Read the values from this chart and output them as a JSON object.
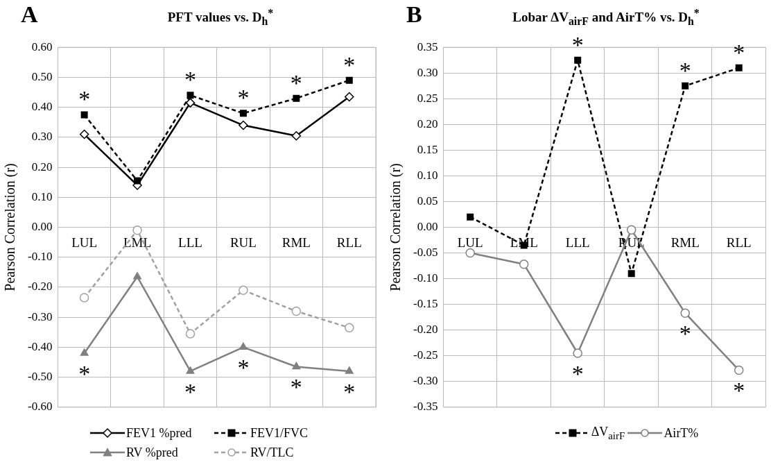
{
  "chart_data": [
    {
      "type": "line",
      "title": "PFT values vs. D$_{h}$$^{*}$",
      "ylabel": "Pearson Correlation (r)",
      "categories": [
        "LUL",
        "LML",
        "LLL",
        "RUL",
        "RML",
        "RLL"
      ],
      "series": [
        {
          "name": "FEV1 %pred",
          "color": "#000000",
          "marker": "diamond",
          "line_style": "solid",
          "values": [
            0.31,
            0.14,
            0.415,
            0.34,
            0.305,
            0.435
          ]
        },
        {
          "name": "FEV1/FVC",
          "color": "#000000",
          "marker": "square",
          "line_style": "dashed",
          "values": [
            0.375,
            0.155,
            0.44,
            0.38,
            0.43,
            0.49
          ]
        },
        {
          "name": "RV %pred",
          "color": "#808080",
          "marker": "triangle",
          "line_style": "solid",
          "values": [
            -0.42,
            -0.165,
            -0.48,
            -0.4,
            -0.465,
            -0.48
          ]
        },
        {
          "name": "RV/TLC",
          "color": "#a0a0a0",
          "marker": "circle",
          "line_style": "dashed",
          "values": [
            -0.235,
            -0.01,
            -0.355,
            -0.21,
            -0.28,
            -0.335
          ]
        }
      ],
      "ylim": [
        -0.6,
        0.6
      ],
      "yticks": [
        {
          "value": -0.6,
          "label": "-0.60"
        },
        {
          "value": -0.5,
          "label": "-0.50"
        },
        {
          "value": -0.4,
          "label": "-0.40"
        },
        {
          "value": -0.3,
          "label": "-0.30"
        },
        {
          "value": -0.2,
          "label": "-0.20"
        },
        {
          "value": -0.1,
          "label": "-0.10"
        },
        {
          "value": 0,
          "label": "0.00"
        },
        {
          "value": 0.1,
          "label": "0.10"
        },
        {
          "value": 0.2,
          "label": "0.20"
        },
        {
          "value": 0.3,
          "label": "0.30"
        },
        {
          "value": 0.4,
          "label": "0.40"
        },
        {
          "value": 0.5,
          "label": "0.50"
        },
        {
          "value": 0.6,
          "label": "0.60"
        }
      ],
      "grid": true,
      "legend": "bottom",
      "annotations": [
        "A",
        {
          "text": "*",
          "x": "LUL",
          "y": 0.375
        },
        {
          "text": "*",
          "x": "LUL",
          "y": -0.42
        },
        {
          "text": "*",
          "x": "LLL",
          "y": 0.44
        },
        {
          "text": "*",
          "x": "LLL",
          "y": -0.48
        },
        {
          "text": "*",
          "x": "RUL",
          "y": 0.38
        },
        {
          "text": "*",
          "x": "RUL",
          "y": -0.4
        },
        {
          "text": "*",
          "x": "RML",
          "y": 0.43
        },
        {
          "text": "*",
          "x": "RML",
          "y": -0.465
        },
        {
          "text": "*",
          "x": "RLL",
          "y": 0.49
        },
        {
          "text": "*",
          "x": "RLL",
          "y": -0.48
        }
      ]
    },
    {
      "type": "line",
      "title": "Lobar ΔV$_{airF}$ and AirT% vs. D$_{h}$$^{*}$",
      "ylabel": "Pearson Correlation (r)",
      "categories": [
        "LUL",
        "LML",
        "LLL",
        "RUL",
        "RML",
        "RLL"
      ],
      "series": [
        {
          "name": "ΔV$_{airF}$",
          "color": "#000000",
          "marker": "square",
          "line_style": "dashed",
          "values": [
            0.02,
            -0.035,
            0.325,
            -0.09,
            0.275,
            0.31
          ]
        },
        {
          "name": "AirT%",
          "color": "#808080",
          "marker": "circle",
          "line_style": "solid",
          "values": [
            -0.05,
            -0.072,
            -0.245,
            -0.005,
            -0.167,
            -0.278
          ]
        }
      ],
      "ylim": [
        -0.35,
        0.35
      ],
      "yticks": [
        {
          "value": -0.35,
          "label": "-0.35"
        },
        {
          "value": -0.3,
          "label": "-0.30"
        },
        {
          "value": -0.25,
          "label": "-0.25"
        },
        {
          "value": -0.2,
          "label": "-0.20"
        },
        {
          "value": -0.15,
          "label": "-0.15"
        },
        {
          "value": -0.1,
          "label": "-0.10"
        },
        {
          "value": -0.05,
          "label": "-0.05"
        },
        {
          "value": 0,
          "label": "0.00"
        },
        {
          "value": 0.05,
          "label": "0.05"
        },
        {
          "value": 0.1,
          "label": "0.10"
        },
        {
          "value": 0.15,
          "label": "0.15"
        },
        {
          "value": 0.2,
          "label": "0.20"
        },
        {
          "value": 0.25,
          "label": "0.25"
        },
        {
          "value": 0.3,
          "label": "0.30"
        },
        {
          "value": 0.35,
          "label": "0.35"
        }
      ],
      "grid": true,
      "legend": "bottom",
      "annotations": [
        "B",
        {
          "text": "*",
          "x": "LLL",
          "y": 0.325
        },
        {
          "text": "*",
          "x": "LLL",
          "y": -0.245
        },
        {
          "text": "*",
          "x": "RML",
          "y": 0.275
        },
        {
          "text": "*",
          "x": "RML",
          "y": -0.167
        },
        {
          "text": "*",
          "x": "RLL",
          "y": 0.31
        },
        {
          "text": "*",
          "x": "RLL",
          "y": -0.278
        }
      ]
    }
  ]
}
